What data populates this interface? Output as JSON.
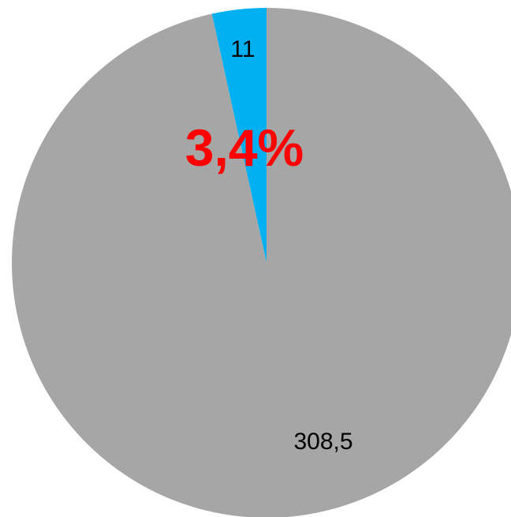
{
  "chart_data": {
    "type": "pie",
    "slices": [
      {
        "value": 11,
        "label": "11",
        "color": "#00B0F0"
      },
      {
        "value": 308.5,
        "label": "308,5",
        "color": "#A6A6A6"
      }
    ],
    "annotation": {
      "text": "3,4%",
      "color": "#FF0000"
    },
    "legend": "none",
    "start_angle_deg": 0,
    "direction": "counter-clockwise"
  }
}
